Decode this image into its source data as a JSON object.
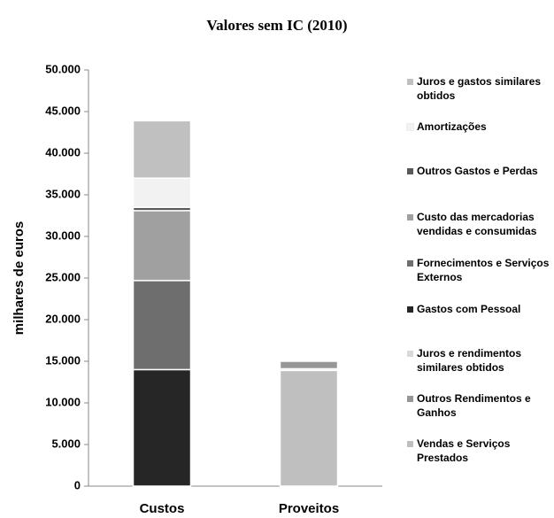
{
  "chart_data": {
    "type": "stacked_bar",
    "title": "Valores sem IC (2010)",
    "y_label": "milhares de euros",
    "categories": [
      "Custos",
      "Proveitos"
    ],
    "series": [
      {
        "name": "Gastos com Pessoal",
        "color": "#262626",
        "values": [
          14000,
          null
        ]
      },
      {
        "name": "Fornecimentos e Serviços Externos",
        "color": "#6e6e6e",
        "values": [
          10700,
          null
        ]
      },
      {
        "name": "Custo das mercadorias vendidas e consumidas",
        "color": "#a0a0a0",
        "values": [
          8400,
          null
        ]
      },
      {
        "name": "Outros Gastos e Perdas",
        "color": "#595959",
        "values": [
          400,
          null
        ]
      },
      {
        "name": "Amortizações",
        "color": "#f2f2f2",
        "values": [
          3500,
          null
        ]
      },
      {
        "name": "Juros e gastos similares obtidos",
        "color": "#c0c0c0",
        "values": [
          6900,
          null
        ]
      },
      {
        "name": "Vendas e Serviços Prestados",
        "color": "#bfbfbf",
        "values": [
          null,
          13900
        ]
      },
      {
        "name": "Juros e rendimentos similares obtidos",
        "color": "#d9d9d9",
        "values": [
          null,
          200
        ]
      },
      {
        "name": "Outros Rendimentos e Ganhos",
        "color": "#969696",
        "values": [
          null,
          900
        ]
      }
    ],
    "ylim": [
      0,
      50000
    ],
    "yticks": [
      0,
      {
        "value": 5000,
        "label": "5.000"
      },
      {
        "value": 10000,
        "label": "10.000"
      },
      {
        "value": 15000,
        "label": "15.000"
      },
      {
        "value": 20000,
        "label": "20.000"
      },
      {
        "value": 25000,
        "label": "25.000"
      },
      {
        "value": 30000,
        "label": "30.000"
      },
      {
        "value": 35000,
        "label": "35.000"
      },
      {
        "value": 40000,
        "label": "40.000"
      },
      {
        "value": 45000,
        "label": "45.000"
      },
      {
        "value": 50000,
        "label": "50.000"
      }
    ],
    "grid": false
  }
}
